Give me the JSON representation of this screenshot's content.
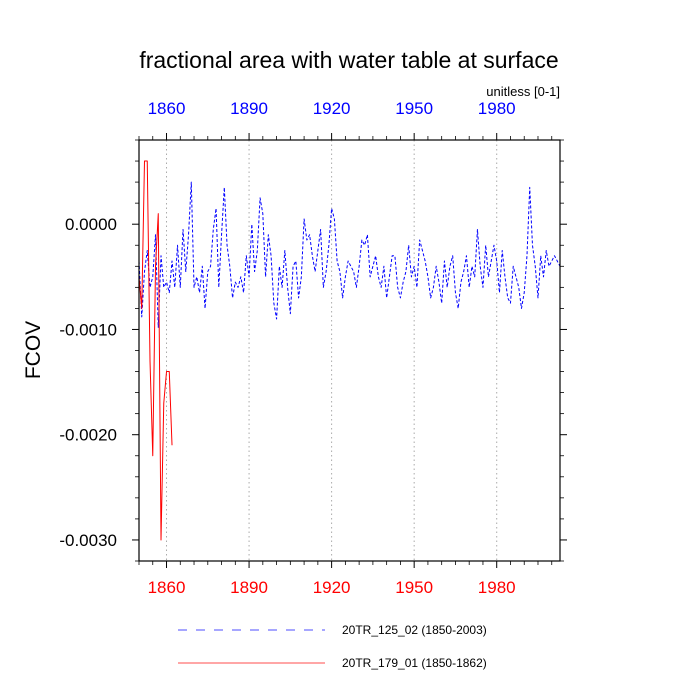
{
  "chart_data": {
    "type": "line",
    "title": "fractional area with water table at surface",
    "units_label": "unitless [0-1]",
    "ylabel": "FCOV",
    "xlabel": "",
    "xlim": [
      1850,
      2003
    ],
    "ylim": [
      -0.0032,
      0.0008
    ],
    "x_ticks_bottom": [
      1860,
      1890,
      1920,
      1950,
      1980
    ],
    "x_ticks_top": [
      1860,
      1890,
      1920,
      1950,
      1980
    ],
    "y_ticks": [
      {
        "value": 0.0,
        "label": "0.0000"
      },
      {
        "value": -0.001,
        "label": "-0.0010"
      },
      {
        "value": -0.002,
        "label": "-0.0020"
      },
      {
        "value": -0.003,
        "label": "-0.0030"
      }
    ],
    "vertical_gridlines": [
      1860,
      1890,
      1920,
      1950,
      1980
    ],
    "colors": {
      "bottom_axis_labels": "#ff0000",
      "top_axis_labels": "#0000ff",
      "series_blue": "#0000ff",
      "series_red": "#ff0000",
      "grid": "#aaaaaa"
    },
    "series": [
      {
        "name": "20TR_125_02 (1850-2003)",
        "color": "#0000ff",
        "style": "dashed",
        "x_start": 1850,
        "x_step": 1,
        "values": [
          -0.00035,
          -0.00088,
          -0.00045,
          -0.00025,
          -0.0006,
          -0.0005,
          -0.0001,
          -0.00098,
          -0.0003,
          -0.0006,
          -0.00055,
          -0.00065,
          -0.00035,
          -0.0006,
          -0.0002,
          -0.0006,
          -5e-05,
          -0.00045,
          -0.0001,
          0.0004,
          -0.0006,
          -0.0005,
          -0.00065,
          -0.0004,
          -0.0008,
          -0.00045,
          -0.0004,
          -5e-05,
          0.00015,
          -0.0006,
          -0.0001,
          0.00035,
          -0.0002,
          -0.0004,
          -0.0007,
          -0.00055,
          -0.0006,
          -0.0005,
          -0.00065,
          -0.0003,
          -0.0005,
          0.0,
          -0.00045,
          -0.00025,
          0.00025,
          0.0001,
          -0.0005,
          -0.0001,
          -0.0003,
          -0.00075,
          -0.0009,
          -0.0004,
          -0.0006,
          -0.00025,
          -0.0006,
          -0.00085,
          -0.0004,
          -0.00035,
          -0.0007,
          -0.0005,
          5e-05,
          -0.00015,
          -0.0001,
          -0.0003,
          -0.00045,
          -0.00025,
          -5e-05,
          -0.0006,
          -0.00045,
          -0.0002,
          0.00015,
          5e-05,
          -0.00035,
          -0.00045,
          -0.0007,
          -0.0005,
          -0.00035,
          -0.0004,
          -0.00045,
          -0.0006,
          -0.0004,
          -0.00015,
          -0.0002,
          -0.0001,
          -0.0005,
          -0.0004,
          -0.0003,
          -0.0005,
          -0.0006,
          -0.0004,
          -0.0007,
          -0.0005,
          -0.0003,
          -0.0003,
          -0.0006,
          -0.0007,
          -0.00055,
          -0.00045,
          -0.0002,
          -0.0005,
          -0.0004,
          -0.0006,
          -0.00015,
          -0.00025,
          -0.00035,
          -0.0005,
          -0.0007,
          -0.0006,
          -0.0004,
          -0.00055,
          -0.00075,
          -0.00035,
          -0.0006,
          -0.0004,
          -0.0003,
          -0.00065,
          -0.0008,
          -0.00055,
          -0.00045,
          -0.0003,
          -0.0006,
          -0.0004,
          -0.0005,
          -5e-05,
          -0.0004,
          -0.0006,
          -0.0002,
          -0.0005,
          -0.00035,
          -0.0002,
          -0.00035,
          -0.00065,
          -0.00025,
          -0.0005,
          -0.0007,
          -0.00075,
          -0.0004,
          -0.0005,
          -0.0006,
          -0.0008,
          -0.00065,
          -0.0003,
          0.00035,
          -0.0002,
          -0.0004,
          -0.0007,
          -0.0003,
          -0.0005,
          -0.00025,
          -0.0004,
          -0.00035,
          -0.0003,
          -0.00035,
          -0.0004
        ]
      },
      {
        "name": "20TR_179_01 (1850-1862)",
        "color": "#ff0000",
        "style": "solid",
        "x_start": 1850,
        "x_step": 1,
        "values": [
          -0.0005,
          -0.0008,
          0.0006,
          0.0006,
          -0.0013,
          -0.0022,
          -0.0004,
          0.0001,
          -0.003,
          -0.0017,
          -0.0014,
          -0.0014,
          -0.0021
        ]
      }
    ],
    "legend": {
      "position": "bottom",
      "entries": [
        "20TR_125_02 (1850-2003)",
        "20TR_179_01 (1850-1862)"
      ]
    }
  }
}
